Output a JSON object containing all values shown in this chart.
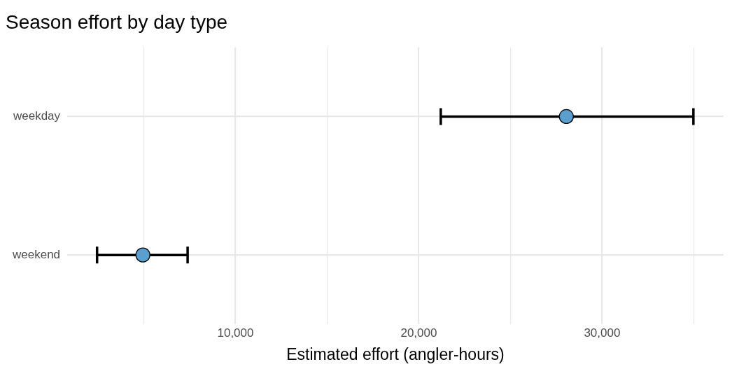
{
  "chart_data": {
    "type": "scatter",
    "title": "Season effort by day type",
    "xlabel": "Estimated effort (angler-hours)",
    "categories": [
      "weekday",
      "weekend"
    ],
    "orientation": "horizontal",
    "values": [
      28050,
      4950
    ],
    "errors": [
      [
        21200,
        34980
      ],
      [
        2450,
        7390
      ]
    ],
    "color": "#5b9fd0",
    "marker": "circle",
    "xlim": [
      822,
      36628
    ],
    "xticks": [
      {
        "value": 5000,
        "label": null
      },
      {
        "value": 10000,
        "label": "10,000"
      },
      {
        "value": 15000,
        "label": null
      },
      {
        "value": 20000,
        "label": "20,000"
      },
      {
        "value": 25000,
        "label": null
      },
      {
        "value": 30000,
        "label": "30,000"
      },
      {
        "value": 35000,
        "label": null
      }
    ],
    "grid": true,
    "legend": false
  }
}
